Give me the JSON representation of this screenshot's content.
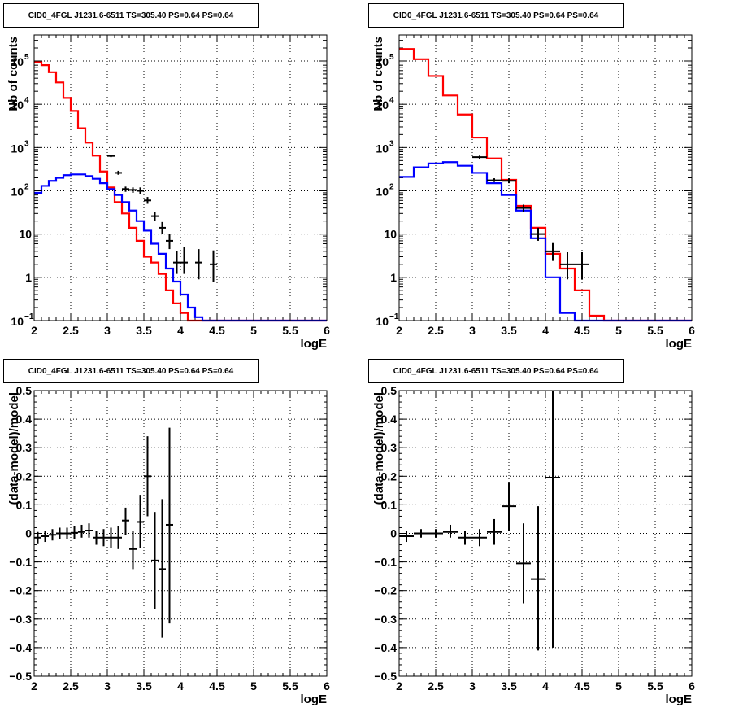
{
  "chart_data": [
    {
      "type": "line",
      "title": "CID0_4FGL J1231.6-6511 TS=305.40 PS=0.64 PS=0.64",
      "xlabel": "logE",
      "ylabel": "Nb of counts",
      "xlim": [
        2,
        6
      ],
      "ylim": [
        0.1,
        400000
      ],
      "log_y": true,
      "grid": true,
      "xticks": [
        "2",
        "2.5",
        "3",
        "3.5",
        "4",
        "4.5",
        "5",
        "5.5",
        "6"
      ],
      "yticks": [
        {
          "value": 0.1,
          "label": "10",
          "sup": "−1"
        },
        {
          "value": 1,
          "label": "1",
          "sup": ""
        },
        {
          "value": 10,
          "label": "10",
          "sup": ""
        },
        {
          "value": 100,
          "label": "10",
          "sup": "2"
        },
        {
          "value": 1000,
          "label": "10",
          "sup": "3"
        },
        {
          "value": 10000,
          "label": "10",
          "sup": "4"
        },
        {
          "value": 100000,
          "label": "10",
          "sup": "5"
        }
      ],
      "bin_edges": [
        2.0,
        2.1,
        2.2,
        2.3,
        2.4,
        2.5,
        2.6,
        2.7,
        2.8,
        2.9,
        3.0,
        3.1,
        3.2,
        3.3,
        3.4,
        3.5,
        3.6,
        3.7,
        3.8,
        3.9,
        4.0,
        4.1,
        4.2,
        4.3,
        4.4,
        4.5,
        4.6,
        4.7,
        4.8,
        4.9,
        5.0,
        5.1,
        5.2,
        5.3,
        5.4,
        5.5,
        5.6,
        5.7,
        5.8,
        5.9,
        6.0
      ],
      "series": [
        {
          "kind": "step",
          "color": "#ff0000",
          "values": [
            95000,
            80000,
            55000,
            32000,
            14000,
            7000,
            2800,
            1300,
            650,
            280,
            120,
            55,
            30,
            14,
            7,
            3,
            2.2,
            1.2,
            0.5,
            0.25,
            0.15,
            0.1,
            0.1,
            0.1,
            0.1,
            0.1,
            0.1,
            0.1,
            0.1,
            0.1,
            0.1,
            0.1,
            0.1,
            0.1,
            0.1,
            0.1,
            0.1,
            0.1,
            0.1,
            0.1
          ]
        },
        {
          "kind": "step",
          "color": "#0000ff",
          "values": [
            90,
            130,
            170,
            200,
            230,
            240,
            240,
            220,
            190,
            150,
            110,
            80,
            55,
            35,
            20,
            12,
            6,
            3.5,
            1.6,
            0.8,
            0.4,
            0.2,
            0.12,
            0.1,
            0.1,
            0.1,
            0.1,
            0.1,
            0.1,
            0.1,
            0.1,
            0.1,
            0.1,
            0.1,
            0.1,
            0.1,
            0.1,
            0.1,
            0.1,
            0.1
          ]
        },
        {
          "kind": "errors",
          "color": "#000000",
          "points": [
            {
              "x": 3.05,
              "y": 640,
              "xerr": 0.05,
              "ylo": 600,
              "yhi": 680
            },
            {
              "x": 3.15,
              "y": 260,
              "xerr": 0.05,
              "ylo": 235,
              "yhi": 290
            },
            {
              "x": 3.25,
              "y": 110,
              "xerr": 0.05,
              "ylo": 95,
              "yhi": 125
            },
            {
              "x": 3.35,
              "y": 105,
              "xerr": 0.05,
              "ylo": 90,
              "yhi": 120
            },
            {
              "x": 3.45,
              "y": 100,
              "xerr": 0.05,
              "ylo": 85,
              "yhi": 120
            },
            {
              "x": 3.55,
              "y": 60,
              "xerr": 0.05,
              "ylo": 50,
              "yhi": 72
            },
            {
              "x": 3.65,
              "y": 26,
              "xerr": 0.05,
              "ylo": 20,
              "yhi": 33
            },
            {
              "x": 3.75,
              "y": 14,
              "xerr": 0.05,
              "ylo": 10,
              "yhi": 19
            },
            {
              "x": 3.85,
              "y": 7,
              "xerr": 0.05,
              "ylo": 4.5,
              "yhi": 10
            },
            {
              "x": 3.95,
              "y": 2.2,
              "xerr": 0.05,
              "ylo": 1.2,
              "yhi": 4
            },
            {
              "x": 4.05,
              "y": 2.2,
              "xerr": 0.05,
              "ylo": 1.2,
              "yhi": 5
            },
            {
              "x": 4.25,
              "y": 2.2,
              "xerr": 0.05,
              "ylo": 0.9,
              "yhi": 4.5
            },
            {
              "x": 4.45,
              "y": 2.0,
              "xerr": 0.05,
              "ylo": 0.8,
              "yhi": 4.2
            }
          ]
        }
      ]
    },
    {
      "type": "line",
      "title": "CID0_4FGL J1231.6-6511 TS=305.40 PS=0.64 PS=0.64",
      "xlabel": "logE",
      "ylabel": "Nb of counts",
      "xlim": [
        2,
        6
      ],
      "ylim": [
        0.1,
        400000
      ],
      "log_y": true,
      "grid": true,
      "xticks": [
        "2",
        "2.5",
        "3",
        "3.5",
        "4",
        "4.5",
        "5",
        "5.5",
        "6"
      ],
      "yticks": [
        {
          "value": 0.1,
          "label": "10",
          "sup": "−1"
        },
        {
          "value": 1,
          "label": "1",
          "sup": ""
        },
        {
          "value": 10,
          "label": "10",
          "sup": ""
        },
        {
          "value": 100,
          "label": "10",
          "sup": "2"
        },
        {
          "value": 1000,
          "label": "10",
          "sup": "3"
        },
        {
          "value": 10000,
          "label": "10",
          "sup": "4"
        },
        {
          "value": 100000,
          "label": "10",
          "sup": "5"
        }
      ],
      "bin_edges": [
        2.0,
        2.2,
        2.4,
        2.6,
        2.8,
        3.0,
        3.2,
        3.4,
        3.6,
        3.8,
        4.0,
        4.2,
        4.4,
        4.6,
        4.8,
        5.0,
        5.2,
        5.4,
        5.6,
        5.8,
        6.0
      ],
      "series": [
        {
          "kind": "step",
          "color": "#ff0000",
          "values": [
            190000,
            110000,
            45000,
            16000,
            5800,
            1700,
            560,
            180,
            45,
            14,
            3.5,
            1.6,
            0.5,
            0.13,
            0.1,
            0.1,
            0.1,
            0.1,
            0.1,
            0.1
          ]
        },
        {
          "kind": "step",
          "color": "#0000ff",
          "values": [
            210,
            350,
            430,
            460,
            380,
            260,
            150,
            80,
            35,
            8,
            1,
            0.15,
            0.1,
            0.1,
            0.1,
            0.1,
            0.1,
            0.1,
            0.1,
            0.1
          ]
        },
        {
          "kind": "errors",
          "color": "#000000",
          "points": [
            {
              "x": 3.1,
              "y": 600,
              "xerr": 0.1,
              "ylo": 550,
              "yhi": 650
            },
            {
              "x": 3.3,
              "y": 175,
              "xerr": 0.1,
              "ylo": 160,
              "yhi": 195
            },
            {
              "x": 3.5,
              "y": 170,
              "xerr": 0.1,
              "ylo": 150,
              "yhi": 195
            },
            {
              "x": 3.7,
              "y": 40,
              "xerr": 0.1,
              "ylo": 33,
              "yhi": 48
            },
            {
              "x": 3.9,
              "y": 10,
              "xerr": 0.1,
              "ylo": 7,
              "yhi": 14
            },
            {
              "x": 4.1,
              "y": 4,
              "xerr": 0.1,
              "ylo": 2.4,
              "yhi": 6.2
            },
            {
              "x": 4.3,
              "y": 2,
              "xerr": 0.1,
              "ylo": 0.9,
              "yhi": 3.8
            },
            {
              "x": 4.5,
              "y": 2,
              "xerr": 0.1,
              "ylo": 0.9,
              "yhi": 3.8
            }
          ]
        }
      ]
    },
    {
      "type": "scatter",
      "title": "CID0_4FGL J1231.6-6511 TS=305.40 PS=0.64 PS=0.64",
      "xlabel": "logE",
      "ylabel": "(data-model)/model",
      "xlim": [
        2,
        6
      ],
      "ylim": [
        -0.5,
        0.5
      ],
      "log_y": false,
      "grid": true,
      "xticks": [
        "2",
        "2.5",
        "3",
        "3.5",
        "4",
        "4.5",
        "5",
        "5.5",
        "6"
      ],
      "yticks": [
        {
          "value": -0.5,
          "label": "−0.5"
        },
        {
          "value": -0.4,
          "label": "−0.4"
        },
        {
          "value": -0.3,
          "label": "−0.3"
        },
        {
          "value": -0.2,
          "label": "−0.2"
        },
        {
          "value": -0.1,
          "label": "−0.1"
        },
        {
          "value": 0,
          "label": "0"
        },
        {
          "value": 0.1,
          "label": "0.1"
        },
        {
          "value": 0.2,
          "label": "0.2"
        },
        {
          "value": 0.3,
          "label": "0.3"
        },
        {
          "value": 0.4,
          "label": "0.4"
        },
        {
          "value": 0.5,
          "label": "0.5"
        }
      ],
      "series": [
        {
          "kind": "errors",
          "color": "#000000",
          "points": [
            {
              "x": 2.05,
              "y": -0.015,
              "xerr": 0.05,
              "ylo": -0.035,
              "yhi": 0.005
            },
            {
              "x": 2.15,
              "y": -0.01,
              "xerr": 0.05,
              "ylo": -0.03,
              "yhi": 0.01
            },
            {
              "x": 2.25,
              "y": -0.005,
              "xerr": 0.05,
              "ylo": -0.025,
              "yhi": 0.015
            },
            {
              "x": 2.35,
              "y": 0.0,
              "xerr": 0.05,
              "ylo": -0.02,
              "yhi": 0.02
            },
            {
              "x": 2.45,
              "y": 0.0,
              "xerr": 0.05,
              "ylo": -0.02,
              "yhi": 0.02
            },
            {
              "x": 2.55,
              "y": 0.002,
              "xerr": 0.05,
              "ylo": -0.02,
              "yhi": 0.025
            },
            {
              "x": 2.65,
              "y": 0.005,
              "xerr": 0.05,
              "ylo": -0.015,
              "yhi": 0.03
            },
            {
              "x": 2.75,
              "y": 0.01,
              "xerr": 0.05,
              "ylo": -0.015,
              "yhi": 0.035
            },
            {
              "x": 2.85,
              "y": -0.015,
              "xerr": 0.05,
              "ylo": -0.04,
              "yhi": 0.01
            },
            {
              "x": 2.95,
              "y": -0.015,
              "xerr": 0.05,
              "ylo": -0.045,
              "yhi": 0.015
            },
            {
              "x": 3.05,
              "y": -0.015,
              "xerr": 0.05,
              "ylo": -0.05,
              "yhi": 0.02
            },
            {
              "x": 3.15,
              "y": -0.015,
              "xerr": 0.05,
              "ylo": -0.055,
              "yhi": 0.025
            },
            {
              "x": 3.25,
              "y": 0.045,
              "xerr": 0.05,
              "ylo": -0.005,
              "yhi": 0.09
            },
            {
              "x": 3.35,
              "y": -0.055,
              "xerr": 0.05,
              "ylo": -0.125,
              "yhi": 0.01
            },
            {
              "x": 3.45,
              "y": 0.04,
              "xerr": 0.05,
              "ylo": -0.05,
              "yhi": 0.135
            },
            {
              "x": 3.55,
              "y": 0.2,
              "xerr": 0.05,
              "ylo": 0.06,
              "yhi": 0.34
            },
            {
              "x": 3.65,
              "y": -0.095,
              "xerr": 0.05,
              "ylo": -0.265,
              "yhi": 0.075
            },
            {
              "x": 3.75,
              "y": -0.125,
              "xerr": 0.05,
              "ylo": -0.365,
              "yhi": 0.12
            },
            {
              "x": 3.85,
              "y": 0.03,
              "xerr": 0.05,
              "ylo": -0.315,
              "yhi": 0.37
            }
          ]
        }
      ]
    },
    {
      "type": "scatter",
      "title": "CID0_4FGL J1231.6-6511 TS=305.40 PS=0.64 PS=0.64",
      "xlabel": "logE",
      "ylabel": "(data-model)/model",
      "xlim": [
        2,
        6
      ],
      "ylim": [
        -0.5,
        0.5
      ],
      "log_y": false,
      "grid": true,
      "xticks": [
        "2",
        "2.5",
        "3",
        "3.5",
        "4",
        "4.5",
        "5",
        "5.5",
        "6"
      ],
      "yticks": [
        {
          "value": -0.5,
          "label": "−0.5"
        },
        {
          "value": -0.4,
          "label": "−0.4"
        },
        {
          "value": -0.3,
          "label": "−0.3"
        },
        {
          "value": -0.2,
          "label": "−0.2"
        },
        {
          "value": -0.1,
          "label": "−0.1"
        },
        {
          "value": 0,
          "label": "0"
        },
        {
          "value": 0.1,
          "label": "0.1"
        },
        {
          "value": 0.2,
          "label": "0.2"
        },
        {
          "value": 0.3,
          "label": "0.3"
        },
        {
          "value": 0.4,
          "label": "0.4"
        },
        {
          "value": 0.5,
          "label": "0.5"
        }
      ],
      "series": [
        {
          "kind": "errors",
          "color": "#000000",
          "points": [
            {
              "x": 2.1,
              "y": -0.01,
              "xerr": 0.1,
              "ylo": -0.03,
              "yhi": 0.01
            },
            {
              "x": 2.3,
              "y": 0.0,
              "xerr": 0.1,
              "ylo": -0.015,
              "yhi": 0.015
            },
            {
              "x": 2.5,
              "y": 0.0,
              "xerr": 0.1,
              "ylo": -0.015,
              "yhi": 0.015
            },
            {
              "x": 2.7,
              "y": 0.005,
              "xerr": 0.1,
              "ylo": -0.015,
              "yhi": 0.03
            },
            {
              "x": 2.9,
              "y": -0.015,
              "xerr": 0.1,
              "ylo": -0.04,
              "yhi": 0.01
            },
            {
              "x": 3.1,
              "y": -0.015,
              "xerr": 0.1,
              "ylo": -0.045,
              "yhi": 0.015
            },
            {
              "x": 3.3,
              "y": 0.005,
              "xerr": 0.1,
              "ylo": -0.04,
              "yhi": 0.05
            },
            {
              "x": 3.5,
              "y": 0.095,
              "xerr": 0.1,
              "ylo": 0.01,
              "yhi": 0.18
            },
            {
              "x": 3.7,
              "y": -0.105,
              "xerr": 0.1,
              "ylo": -0.245,
              "yhi": 0.035
            },
            {
              "x": 3.9,
              "y": -0.16,
              "xerr": 0.1,
              "ylo": -0.41,
              "yhi": 0.095
            },
            {
              "x": 4.1,
              "y": 0.195,
              "xerr": 0.1,
              "ylo": -0.4,
              "yhi": 0.5
            }
          ]
        }
      ]
    }
  ]
}
